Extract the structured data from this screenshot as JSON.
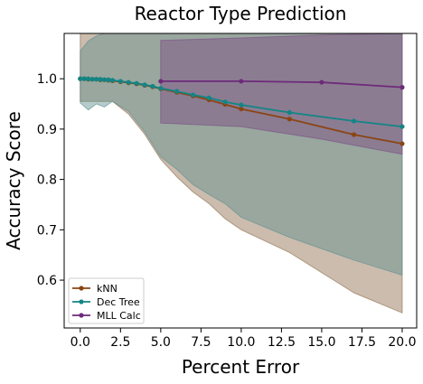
{
  "chart_data": {
    "type": "line",
    "title": "Reactor Type Prediction",
    "xlabel": "Percent Error",
    "ylabel": "Accuracy Score",
    "xlim": [
      -1,
      20.9
    ],
    "ylim": [
      0.505,
      1.09
    ],
    "x_ticks": [
      0.0,
      2.5,
      5.0,
      7.5,
      10.0,
      12.5,
      15.0,
      17.5,
      20.0
    ],
    "x_tick_labels": [
      "0.0",
      "2.5",
      "5.0",
      "7.5",
      "10.0",
      "12.5",
      "15.0",
      "17.5",
      "20.0"
    ],
    "y_ticks": [
      0.6,
      0.7,
      0.8,
      0.9,
      1.0
    ],
    "y_tick_labels": [
      "0.6",
      "0.7",
      "0.8",
      "0.9",
      "1.0"
    ],
    "grid": false,
    "legend_position": "lower-left",
    "series": [
      {
        "name": "kNN",
        "color": "#8B4513",
        "band_color": "#8B6B4A",
        "x": [
          0,
          0.25,
          0.5,
          0.75,
          1.0,
          1.25,
          1.5,
          1.75,
          2.0,
          2.5,
          3.0,
          3.5,
          4.0,
          4.5,
          5,
          6,
          7,
          8,
          9,
          10,
          13,
          17,
          20
        ],
        "y": [
          1.0,
          1.0,
          0.999,
          0.999,
          0.999,
          0.998,
          0.998,
          0.997,
          0.996,
          0.994,
          0.992,
          0.99,
          0.987,
          0.984,
          0.98,
          0.973,
          0.966,
          0.958,
          0.949,
          0.94,
          0.92,
          0.889,
          0.871
        ],
        "band_x": [
          0,
          1,
          2,
          3,
          4,
          5,
          6,
          7,
          8,
          9,
          10,
          13,
          17,
          20
        ],
        "band_upper": [
          1.09,
          1.09,
          1.09,
          1.09,
          1.09,
          1.09,
          1.09,
          1.09,
          1.09,
          1.09,
          1.09,
          1.09,
          1.09,
          1.09
        ],
        "band_lower": [
          0.955,
          0.955,
          0.955,
          0.93,
          0.89,
          0.84,
          0.805,
          0.775,
          0.752,
          0.722,
          0.7,
          0.655,
          0.575,
          0.535
        ]
      },
      {
        "name": "Dec Tree",
        "color": "#138585",
        "band_color": "#5E8E8E",
        "x": [
          0,
          0.25,
          0.5,
          0.75,
          1.0,
          1.25,
          1.5,
          1.75,
          2.0,
          2.5,
          3.0,
          3.5,
          4.0,
          4.5,
          5,
          6,
          7,
          8,
          9,
          10,
          13,
          17,
          20
        ],
        "y": [
          1.0,
          1.0,
          1.0,
          0.999,
          0.999,
          0.999,
          0.998,
          0.998,
          0.997,
          0.995,
          0.993,
          0.991,
          0.988,
          0.985,
          0.981,
          0.975,
          0.968,
          0.962,
          0.954,
          0.948,
          0.933,
          0.916,
          0.905
        ],
        "band_x": [
          0,
          0.5,
          1,
          1.5,
          2,
          3,
          4,
          5,
          6,
          7,
          8,
          9,
          10,
          13,
          17,
          20
        ],
        "band_upper": [
          1.055,
          1.075,
          1.085,
          1.09,
          1.09,
          1.09,
          1.09,
          1.09,
          1.09,
          1.09,
          1.09,
          1.09,
          1.09,
          1.09,
          1.09,
          1.09
        ],
        "band_lower": [
          0.952,
          0.938,
          0.95,
          0.944,
          0.955,
          0.935,
          0.895,
          0.845,
          0.82,
          0.79,
          0.77,
          0.752,
          0.725,
          0.685,
          0.64,
          0.61
        ]
      },
      {
        "name": "MLL Calc",
        "color": "#6E2A7A",
        "band_color": "#7A4A82",
        "x": [
          5,
          10,
          15,
          20
        ],
        "y": [
          0.995,
          0.995,
          0.993,
          0.983
        ],
        "band_x": [
          5,
          10,
          15,
          20
        ],
        "band_upper": [
          1.076,
          1.081,
          1.087,
          1.09
        ],
        "band_lower": [
          0.912,
          0.905,
          0.88,
          0.85
        ]
      }
    ]
  }
}
